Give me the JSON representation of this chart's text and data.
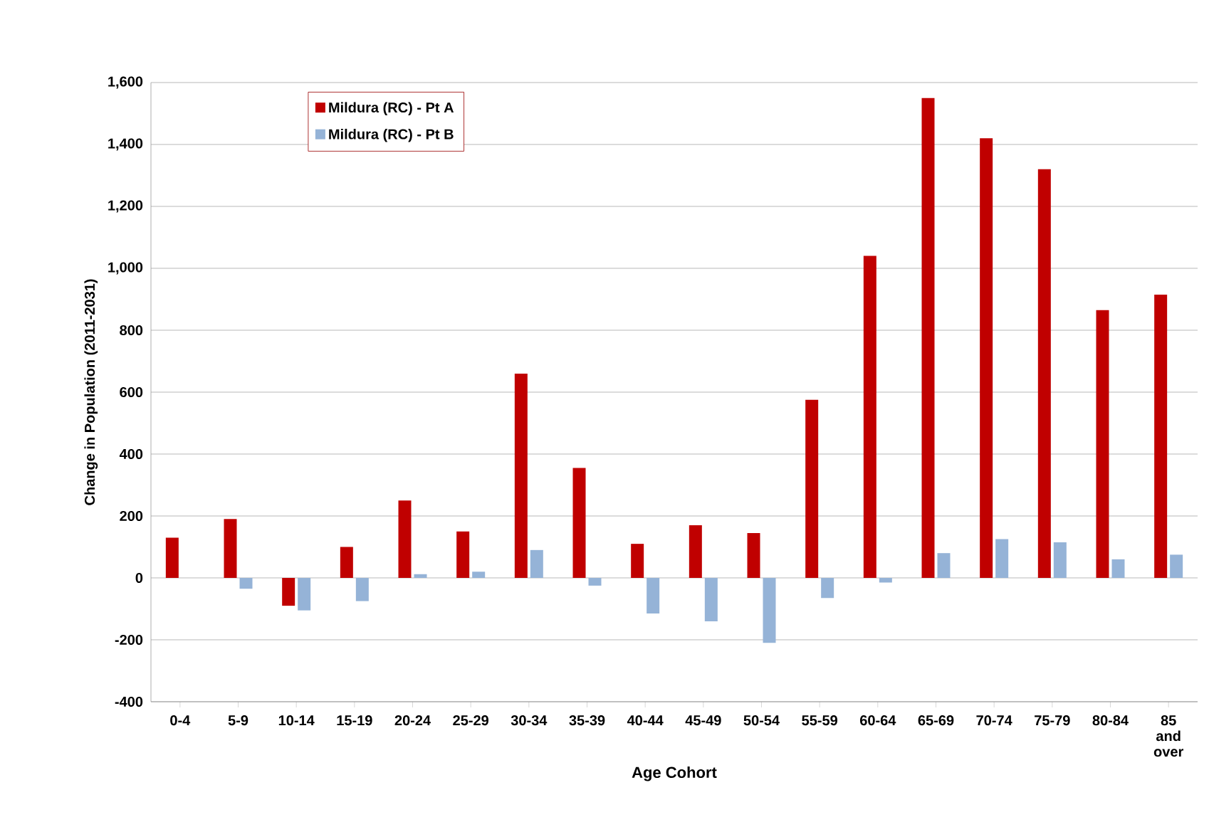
{
  "chart_data": {
    "type": "bar",
    "xlabel": "Age Cohort",
    "ylabel": "Change in Population (2011-2031)",
    "categories": [
      "0-4",
      "5-9",
      "10-14",
      "15-19",
      "20-24",
      "25-29",
      "30-34",
      "35-39",
      "40-44",
      "45-49",
      "50-54",
      "55-59",
      "60-64",
      "65-69",
      "70-74",
      "75-79",
      "80-84",
      "85 and over"
    ],
    "series": [
      {
        "name": "Mildura (RC) - Pt A",
        "color": "#c00000",
        "values": [
          130,
          190,
          -90,
          100,
          250,
          150,
          660,
          355,
          110,
          170,
          145,
          575,
          1040,
          1550,
          1420,
          1320,
          865,
          915
        ]
      },
      {
        "name": "Mildura (RC) - Pt B",
        "color": "#95b3d7",
        "values": [
          0,
          -35,
          -105,
          -75,
          12,
          20,
          90,
          -25,
          -115,
          -140,
          -210,
          -65,
          -15,
          80,
          125,
          115,
          60,
          75
        ]
      }
    ],
    "ylim": [
      -400,
      1600
    ],
    "yticks": [
      -400,
      -200,
      0,
      200,
      400,
      600,
      800,
      {
        "value": 1000,
        "label": "1,000"
      },
      {
        "value": 1200,
        "label": "1,200"
      },
      {
        "value": 1400,
        "label": "1,400"
      },
      {
        "value": 1600,
        "label": "1,600"
      }
    ],
    "grid": "y",
    "legend": "top left"
  }
}
